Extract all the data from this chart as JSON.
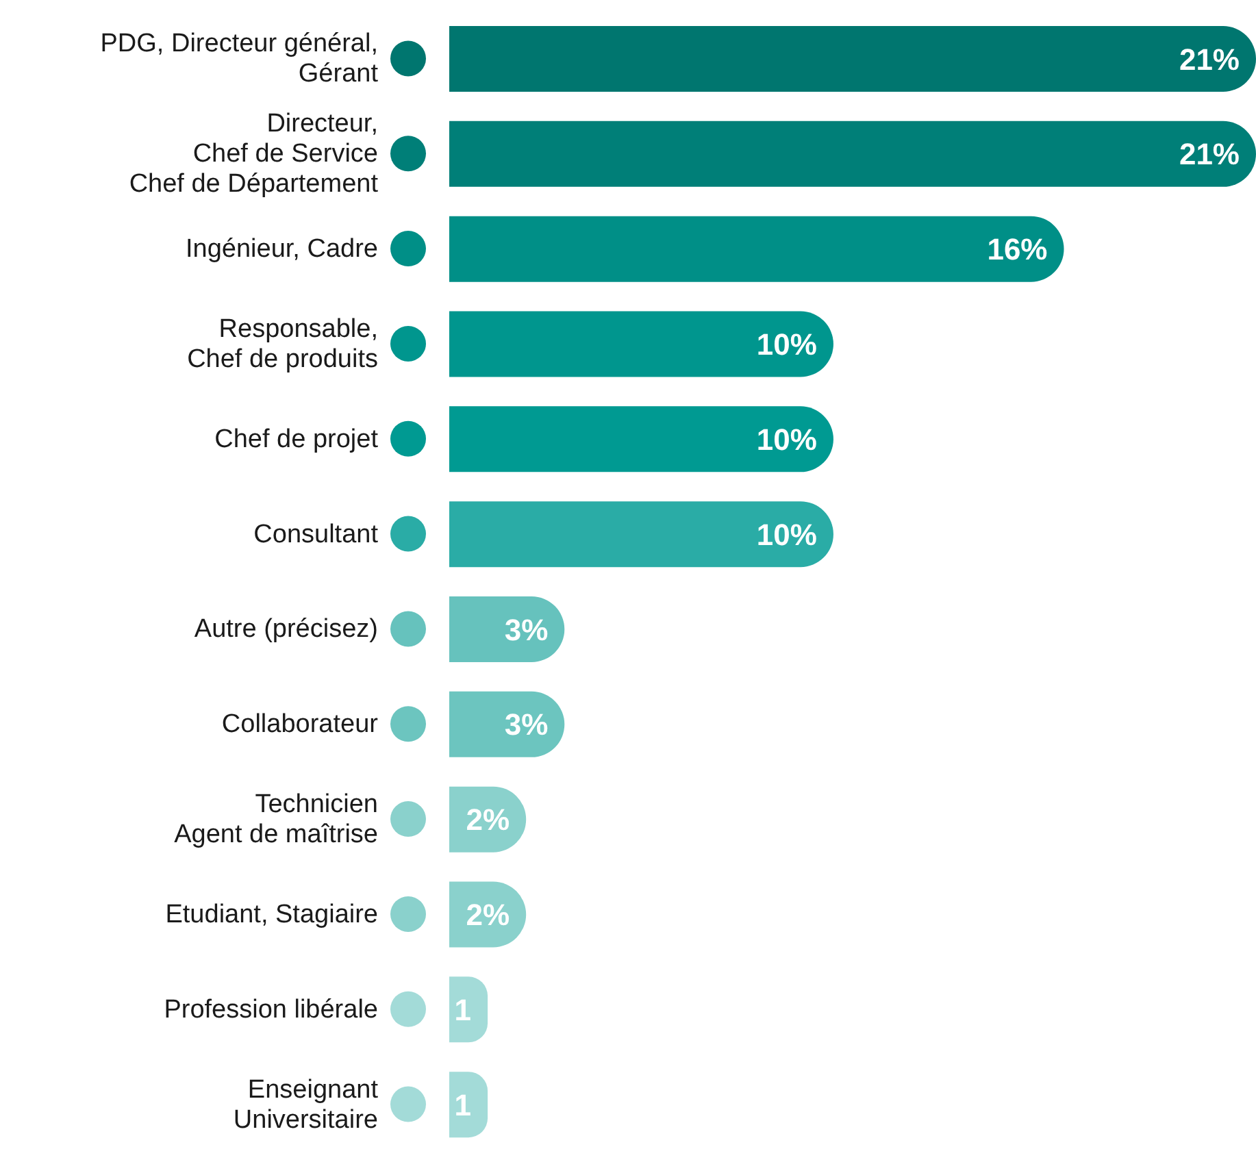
{
  "chart_data": {
    "type": "bar",
    "orientation": "horizontal",
    "tick_labels": "y",
    "categories": [
      "PDG, Directeur général,\nGérant",
      "Directeur,\nChef de Service\nChef de Département",
      "Ingénieur, Cadre",
      "Responsable,\nChef de produits",
      "Chef de projet",
      "Consultant",
      "Autre (précisez)",
      "Collaborateur",
      "Technicien\nAgent de maîtrise",
      "Etudiant, Stagiaire",
      "Profession libérale",
      "Enseignant\nUniversitaire"
    ],
    "values": [
      21,
      21,
      16,
      10,
      10,
      10,
      3,
      3,
      2,
      2,
      1,
      1
    ],
    "value_labels": [
      "21%",
      "21%",
      "16%",
      "10%",
      "10%",
      "10%",
      "3%",
      "3%",
      "2%",
      "2%",
      "1",
      "1"
    ],
    "colors": [
      "#00766f",
      "#007f78",
      "#008f87",
      "#00968e",
      "#009a92",
      "#2aaca6",
      "#66c2bd",
      "#6cc5bf",
      "#8ad1cc",
      "#8ad1cc",
      "#a3dbd8",
      "#a3dbd8"
    ]
  }
}
